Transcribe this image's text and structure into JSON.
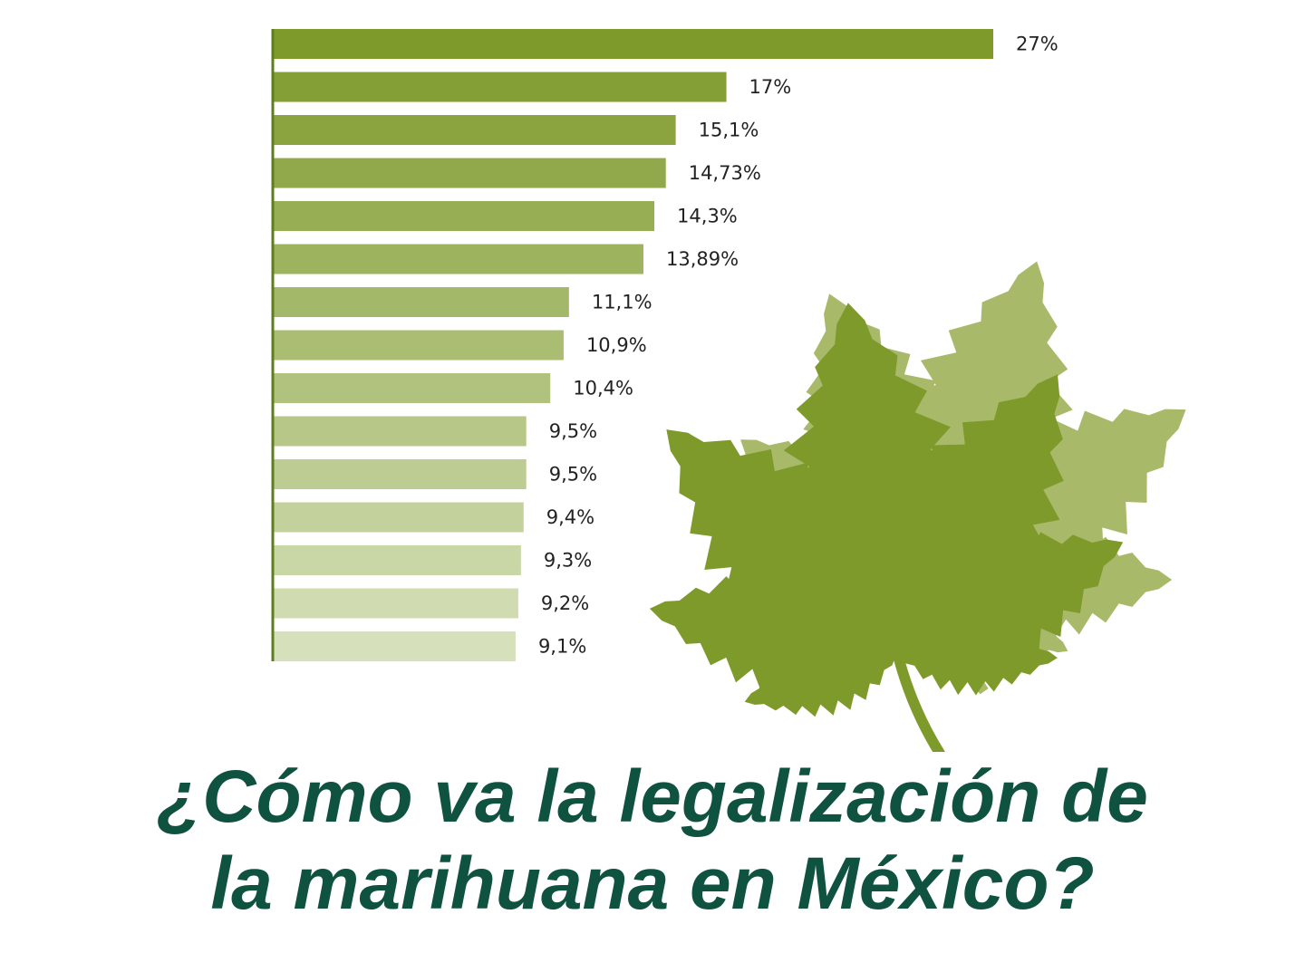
{
  "headline": {
    "line1": "¿Cómo va la legalización de",
    "line2": "la marihuana en México?"
  },
  "illustration": {
    "icon": "cannabis-leaf-icon",
    "colors": {
      "front": "#7e9a2b",
      "back": "#a8ba6a"
    }
  },
  "chart_data": {
    "type": "bar",
    "orientation": "horizontal",
    "categories": [],
    "values": [
      27,
      17,
      15.1,
      14.73,
      14.3,
      13.89,
      11.1,
      10.9,
      10.4,
      9.5,
      9.5,
      9.4,
      9.3,
      9.2,
      9.1
    ],
    "labels": [
      "27%",
      "17%",
      "15,1%",
      "14,73%",
      "14,3%",
      "13,89%",
      "11,1%",
      "10,9%",
      "10,4%",
      "9,5%",
      "9,5%",
      "9,4%",
      "9,3%",
      "9,2%",
      "9,1%"
    ],
    "unit": "%",
    "xlim": [
      0,
      27
    ],
    "colors": {
      "darkest": "#7e9a2b",
      "lightest": "#d6e0bb",
      "axis": "#5d7d1f"
    },
    "grid": false,
    "legend": "none"
  }
}
